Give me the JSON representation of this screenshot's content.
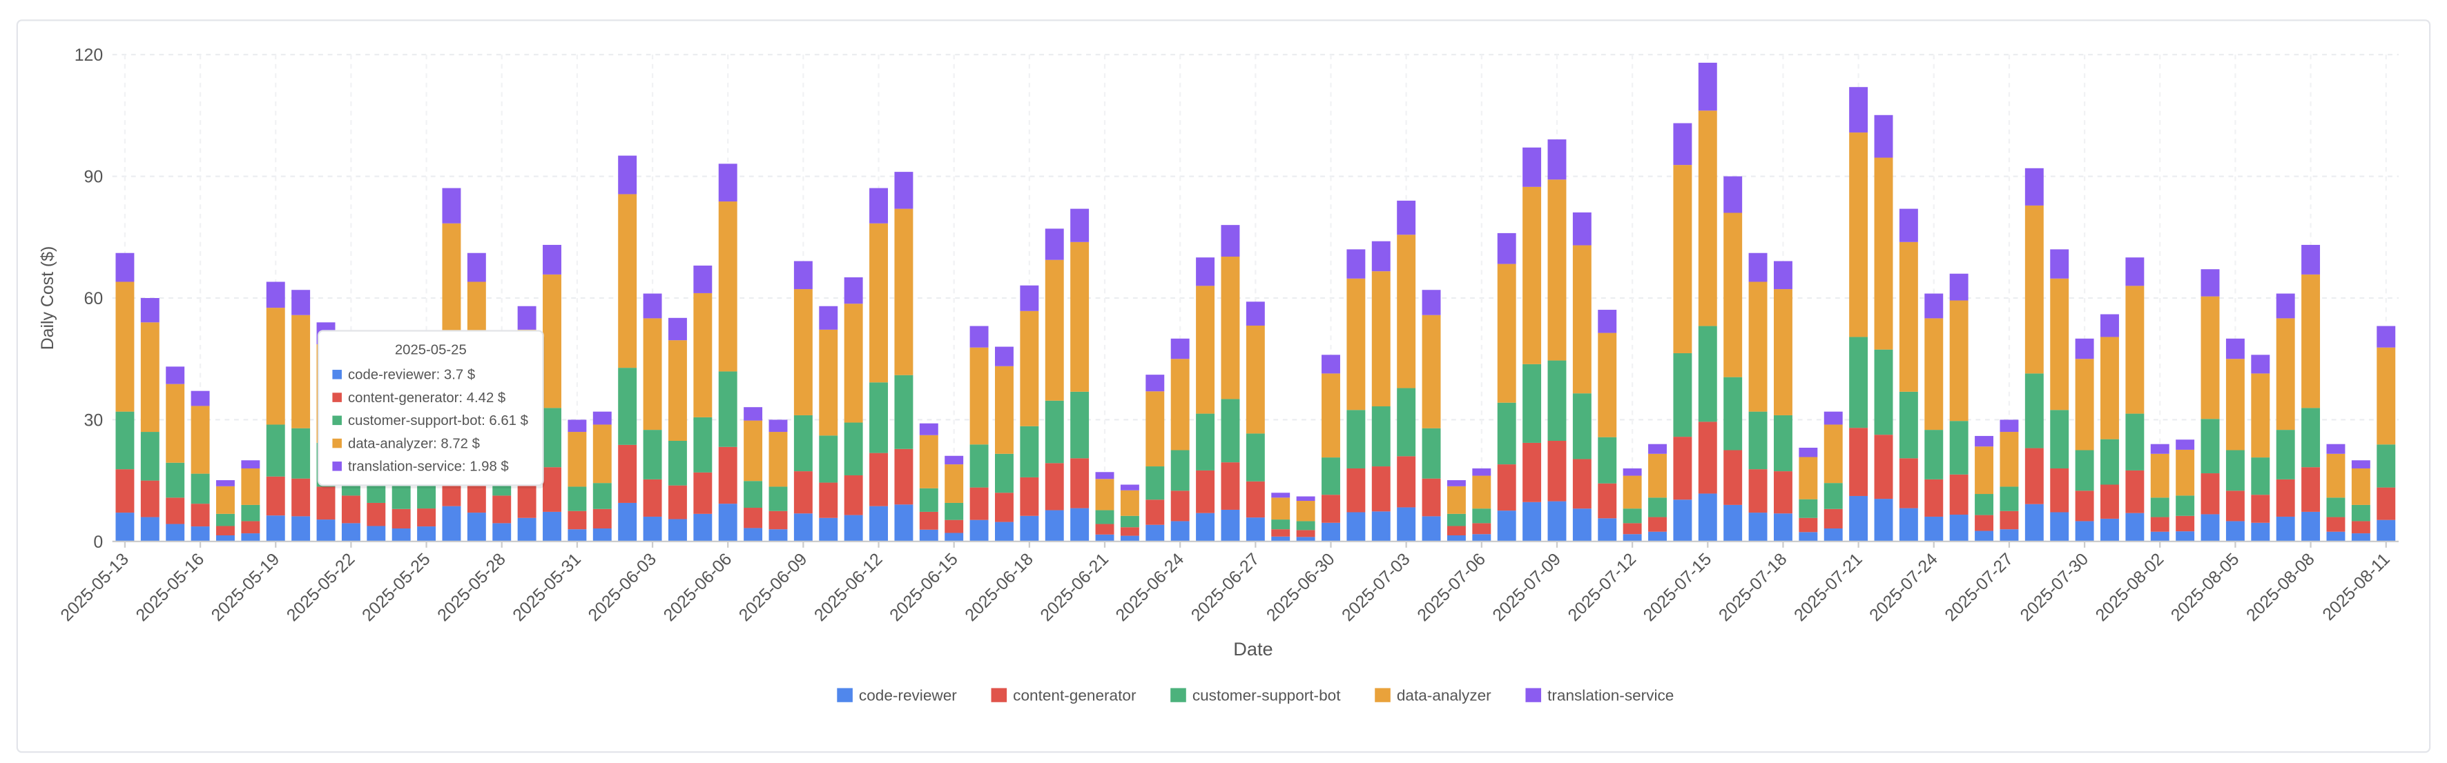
{
  "chart_data": {
    "type": "stacked_bar",
    "x_label": "Date",
    "y_label": "Daily Cost ($)",
    "ylim": [
      0,
      120
    ],
    "yticks": [
      0,
      30,
      60,
      90,
      120
    ],
    "grid": true,
    "legend": "bottom",
    "categories": [
      "2025-05-13",
      "2025-05-14",
      "2025-05-15",
      "2025-05-16",
      "2025-05-17",
      "2025-05-18",
      "2025-05-19",
      "2025-05-20",
      "2025-05-21",
      "2025-05-22",
      "2025-05-23",
      "2025-05-24",
      "2025-05-25",
      "2025-05-26",
      "2025-05-27",
      "2025-05-28",
      "2025-05-29",
      "2025-05-30",
      "2025-05-31",
      "2025-06-01",
      "2025-06-02",
      "2025-06-03",
      "2025-06-04",
      "2025-06-05",
      "2025-06-06",
      "2025-06-07",
      "2025-06-08",
      "2025-06-09",
      "2025-06-10",
      "2025-06-11",
      "2025-06-12",
      "2025-06-13",
      "2025-06-14",
      "2025-06-15",
      "2025-06-16",
      "2025-06-17",
      "2025-06-18",
      "2025-06-19",
      "2025-06-20",
      "2025-06-21",
      "2025-06-22",
      "2025-06-23",
      "2025-06-24",
      "2025-06-25",
      "2025-06-26",
      "2025-06-27",
      "2025-06-28",
      "2025-06-29",
      "2025-06-30",
      "2025-07-01",
      "2025-07-02",
      "2025-07-03",
      "2025-07-04",
      "2025-07-05",
      "2025-07-06",
      "2025-07-07",
      "2025-07-08",
      "2025-07-09",
      "2025-07-10",
      "2025-07-11",
      "2025-07-12",
      "2025-07-13",
      "2025-07-14",
      "2025-07-15",
      "2025-07-16",
      "2025-07-17",
      "2025-07-18",
      "2025-07-19",
      "2025-07-20",
      "2025-07-21",
      "2025-07-22",
      "2025-07-23",
      "2025-07-24",
      "2025-07-25",
      "2025-07-26",
      "2025-07-27",
      "2025-07-28",
      "2025-07-29",
      "2025-07-30",
      "2025-07-31",
      "2025-08-01",
      "2025-08-02",
      "2025-08-03",
      "2025-08-04",
      "2025-08-05",
      "2025-08-06",
      "2025-08-07",
      "2025-08-08",
      "2025-08-09",
      "2025-08-10",
      "2025-08-11"
    ],
    "series": [
      {
        "name": "code-reviewer",
        "color": "#5087ec",
        "values": [
          7.1,
          6,
          4.3,
          3.7,
          1.5,
          2,
          6.4,
          6.2,
          5.4,
          4.5,
          3.8,
          3.2,
          3.7,
          8.7,
          7.1,
          4.5,
          5.8,
          7.3,
          3,
          3.2,
          9.5,
          6.1,
          5.5,
          6.8,
          9.3,
          3.3,
          3,
          6.9,
          5.8,
          6.5,
          8.7,
          9.1,
          2.9,
          2.1,
          5.3,
          4.8,
          6.3,
          7.7,
          8.2,
          1.7,
          1.4,
          4.1,
          5,
          7,
          7.8,
          5.9,
          1.2,
          1.1,
          4.6,
          7.2,
          7.4,
          8.4,
          6.2,
          1.5,
          1.8,
          7.6,
          9.7,
          9.9,
          8.1,
          5.7,
          1.8,
          2.4,
          10.3,
          11.8,
          9,
          7.1,
          6.9,
          2.3,
          3.2,
          11.2,
          10.5,
          8.2,
          6.1,
          6.6,
          2.6,
          3,
          9.2,
          7.2,
          5,
          5.6,
          7,
          2.4,
          2.5,
          6.7,
          5,
          4.6,
          6.1,
          7.3,
          2.4,
          2,
          5.3
        ]
      },
      {
        "name": "content-generator",
        "color": "#e0544b",
        "values": [
          10.7,
          9,
          6.5,
          5.6,
          2.3,
          3,
          9.6,
          9.3,
          8.1,
          6.8,
          5.7,
          4.8,
          4.42,
          13.1,
          10.7,
          6.8,
          8.7,
          11,
          4.5,
          4.8,
          14.3,
          9.2,
          8.3,
          10.2,
          14,
          5,
          4.5,
          10.4,
          8.7,
          9.8,
          13.1,
          13.7,
          4.4,
          3.2,
          8,
          7.2,
          9.5,
          11.6,
          12.3,
          2.6,
          2.1,
          6.2,
          7.5,
          10.5,
          11.7,
          8.9,
          1.8,
          1.7,
          6.9,
          10.8,
          11.1,
          12.6,
          9.3,
          2.3,
          2.7,
          11.4,
          14.6,
          14.9,
          12.2,
          8.6,
          2.7,
          3.6,
          15.5,
          17.7,
          13.5,
          10.7,
          10.4,
          3.5,
          4.8,
          16.8,
          15.8,
          12.3,
          9.2,
          9.9,
          3.9,
          4.5,
          13.8,
          10.8,
          7.5,
          8.4,
          10.5,
          3.6,
          3.8,
          10.1,
          7.5,
          6.9,
          9.2,
          11,
          3.6,
          3,
          8
        ]
      },
      {
        "name": "customer-support-bot",
        "color": "#4cb27c",
        "values": [
          14.2,
          12,
          8.6,
          7.4,
          3,
          4,
          12.8,
          12.4,
          10.8,
          9,
          7.6,
          6.4,
          6.61,
          17.4,
          14.2,
          9,
          11.6,
          14.6,
          6,
          6.4,
          19,
          12.2,
          11,
          13.6,
          18.6,
          6.6,
          6,
          13.8,
          11.6,
          13,
          17.4,
          18.2,
          5.8,
          4.2,
          10.6,
          9.6,
          12.6,
          15.4,
          16.4,
          3.4,
          2.8,
          8.2,
          10,
          14,
          15.6,
          11.8,
          2.4,
          2.2,
          9.2,
          14.4,
          14.8,
          16.8,
          12.4,
          3,
          3.6,
          15.2,
          19.4,
          19.8,
          16.2,
          11.4,
          3.6,
          4.8,
          20.6,
          23.6,
          18,
          14.2,
          13.8,
          4.6,
          6.4,
          22.4,
          21,
          16.4,
          12.2,
          13.2,
          5.2,
          6,
          18.4,
          14.4,
          10,
          11.2,
          14,
          4.8,
          5,
          13.4,
          10,
          9.2,
          12.2,
          14.6,
          4.8,
          4,
          10.6
        ]
      },
      {
        "name": "data-analyzer",
        "color": "#e9a23b",
        "values": [
          32,
          27,
          19.4,
          16.7,
          6.8,
          9,
          28.8,
          27.9,
          24.3,
          20.3,
          17.1,
          14.4,
          8.72,
          39.2,
          32,
          20.3,
          26.1,
          32.9,
          13.5,
          14.4,
          42.8,
          27.5,
          24.8,
          30.6,
          41.9,
          14.9,
          13.5,
          31.1,
          26.1,
          29.3,
          39.2,
          41,
          13.1,
          9.5,
          23.9,
          21.6,
          28.4,
          34.7,
          36.9,
          7.7,
          6.3,
          18.5,
          22.5,
          31.5,
          35.1,
          26.6,
          5.4,
          5,
          20.7,
          32.4,
          33.3,
          37.8,
          27.9,
          6.8,
          8.1,
          34.2,
          43.7,
          44.6,
          36.5,
          25.7,
          8.1,
          10.8,
          46.4,
          53.1,
          40.5,
          32,
          31.1,
          10.4,
          14.4,
          50.4,
          47.3,
          36.9,
          27.5,
          29.7,
          11.7,
          13.5,
          41.4,
          32.4,
          22.5,
          25.2,
          31.5,
          10.8,
          11.3,
          30.2,
          22.5,
          20.7,
          27.5,
          32.9,
          10.8,
          9,
          23.9
        ]
      },
      {
        "name": "translation-service",
        "color": "#8b5cf0",
        "values": [
          7.1,
          6,
          4.3,
          3.7,
          1.5,
          2,
          6.4,
          6.2,
          5.4,
          4.5,
          3.8,
          3.2,
          1.98,
          8.7,
          7.1,
          4.5,
          5.8,
          7.3,
          3,
          3.2,
          9.5,
          6.1,
          5.5,
          6.8,
          9.3,
          3.3,
          3,
          6.9,
          5.8,
          6.5,
          8.7,
          9.1,
          2.9,
          2.1,
          5.3,
          4.8,
          6.3,
          7.7,
          8.2,
          1.7,
          1.4,
          4.1,
          5,
          7,
          7.8,
          5.9,
          1.2,
          1.1,
          4.6,
          7.2,
          7.4,
          8.4,
          6.2,
          1.5,
          1.8,
          7.6,
          9.7,
          9.9,
          8.1,
          5.7,
          1.8,
          2.4,
          10.3,
          11.8,
          9,
          7.1,
          6.9,
          2.3,
          3.2,
          11.2,
          10.5,
          8.2,
          6.1,
          6.6,
          2.6,
          3,
          9.2,
          7.2,
          5,
          5.6,
          7,
          2.4,
          2.5,
          6.7,
          5,
          4.6,
          6.1,
          7.3,
          2.4,
          2,
          5.3
        ]
      }
    ],
    "tooltip": {
      "title": "2025-05-25",
      "items": [
        "code-reviewer: 3.7 $",
        "content-generator: 4.42 $",
        "customer-support-bot: 6.61 $",
        "data-analyzer: 8.72 $",
        "translation-service: 1.98 $"
      ]
    }
  }
}
